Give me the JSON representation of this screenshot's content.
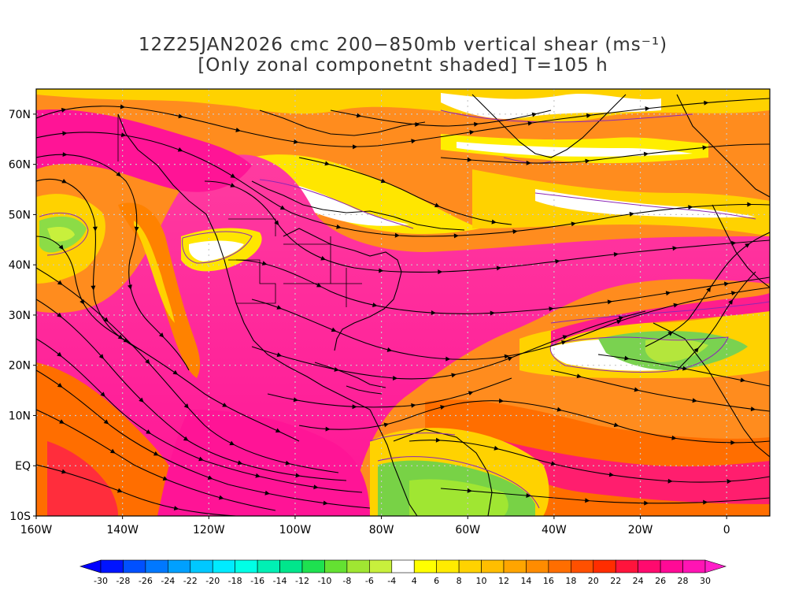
{
  "title": {
    "line1": "12Z25JAN2026 cmc 200−850mb vertical shear (ms⁻¹)",
    "line2": "[Only zonal componetnt shaded] T=105 h"
  },
  "map": {
    "lon_range": [
      -160,
      10
    ],
    "lat_range": [
      -10,
      75
    ],
    "lat_labels": [
      "70N",
      "60N",
      "50N",
      "40N",
      "30N",
      "20N",
      "10N",
      "EQ",
      "10S"
    ],
    "lat_values": [
      70,
      60,
      50,
      40,
      30,
      20,
      10,
      0,
      -10
    ],
    "lon_labels": [
      "160W",
      "140W",
      "120W",
      "100W",
      "80W",
      "60W",
      "40W",
      "20W",
      "0"
    ],
    "lon_values": [
      -160,
      -140,
      -120,
      -100,
      -80,
      -60,
      -40,
      -20,
      0
    ],
    "grid": true,
    "shading": "zonal component of 200-850mb vertical shear",
    "vectors": "streamlines"
  },
  "colorbar": {
    "labels": [
      "-30",
      "-28",
      "-26",
      "-24",
      "-22",
      "-20",
      "-18",
      "-16",
      "-14",
      "-12",
      "-10",
      "-8",
      "-6",
      "-4",
      "4",
      "6",
      "8",
      "10",
      "12",
      "14",
      "16",
      "18",
      "20",
      "22",
      "24",
      "26",
      "28",
      "30"
    ],
    "colors": [
      "#0014ff",
      "#0050ff",
      "#0078ff",
      "#00a0ff",
      "#00c8ff",
      "#00ebff",
      "#00ffe6",
      "#00f0b4",
      "#00e68c",
      "#1ee150",
      "#64e132",
      "#a0e632",
      "#c8f03c",
      "#ffffff",
      "#ffff00",
      "#ffeb00",
      "#ffd200",
      "#ffbe00",
      "#ffa500",
      "#ff8c00",
      "#ff6e00",
      "#ff5000",
      "#ff2d00",
      "#ff143c",
      "#ff0a6e",
      "#ff0a96",
      "#ff14b4"
    ],
    "under_color": "#0000ff",
    "over_color": "#ff1ec8"
  }
}
